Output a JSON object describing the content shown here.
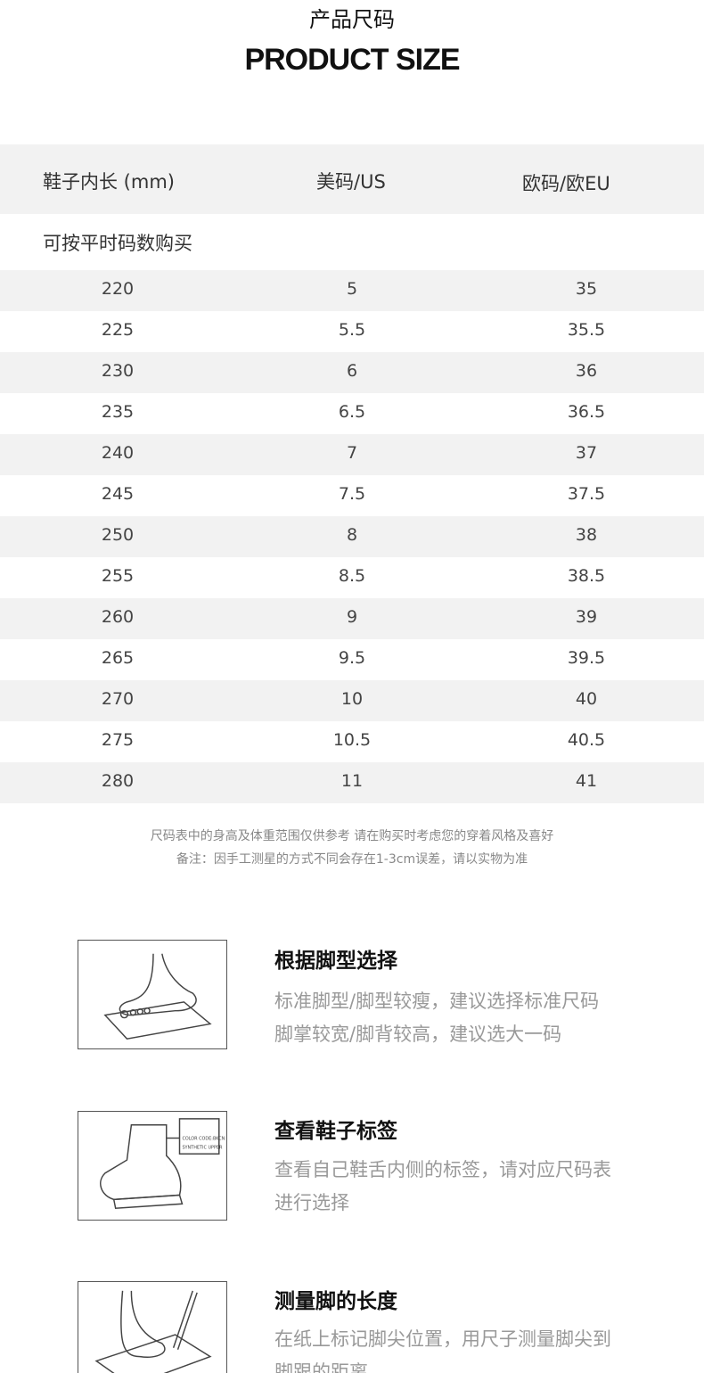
{
  "title_cn": "产品尺码",
  "title_en": "PRODUCT SIZE",
  "table": {
    "headers": [
      "鞋子内长 (mm)",
      "美码/US",
      "欧码/欧EU"
    ],
    "note": "可按平时码数购买",
    "rows": [
      [
        "220",
        "5",
        "35"
      ],
      [
        "225",
        "5.5",
        "35.5"
      ],
      [
        "230",
        "6",
        "36"
      ],
      [
        "235",
        "6.5",
        "36.5"
      ],
      [
        "240",
        "7",
        "37"
      ],
      [
        "245",
        "7.5",
        "37.5"
      ],
      [
        "250",
        "8",
        "38"
      ],
      [
        "255",
        "8.5",
        "38.5"
      ],
      [
        "260",
        "9",
        "39"
      ],
      [
        "265",
        "9.5",
        "39.5"
      ],
      [
        "270",
        "10",
        "40"
      ],
      [
        "275",
        "10.5",
        "40.5"
      ],
      [
        "280",
        "11",
        "41"
      ]
    ]
  },
  "footnotes": [
    "尺码表中的身高及体重范围仅供参考 请在购买时考虑您的穿着风格及喜好",
    "备注：因手工测星的方式不同会存在1-3cm误差，请以实物为准"
  ],
  "tips": [
    {
      "title": "根据脚型选择",
      "lines": [
        "标准脚型/脚型较瘦，建议选择标准尺码",
        "脚掌较宽/脚背较高，建议选大一码"
      ],
      "icon": "foot-on-paper-icon"
    },
    {
      "title": "查看鞋子标签",
      "lines": [
        "查看自己鞋舌内侧的标签，请对应尺码表",
        "进行选择"
      ],
      "icon": "shoe-label-icon",
      "label_text": [
        "COLOR CODE:BKCN",
        "SYNTHETIC UPPER"
      ]
    },
    {
      "title": "测量脚的长度",
      "lines": [
        "在纸上标记脚尖位置，用尺子测量脚尖到",
        "脚跟的距离"
      ],
      "icon": "foot-measure-icon"
    }
  ]
}
